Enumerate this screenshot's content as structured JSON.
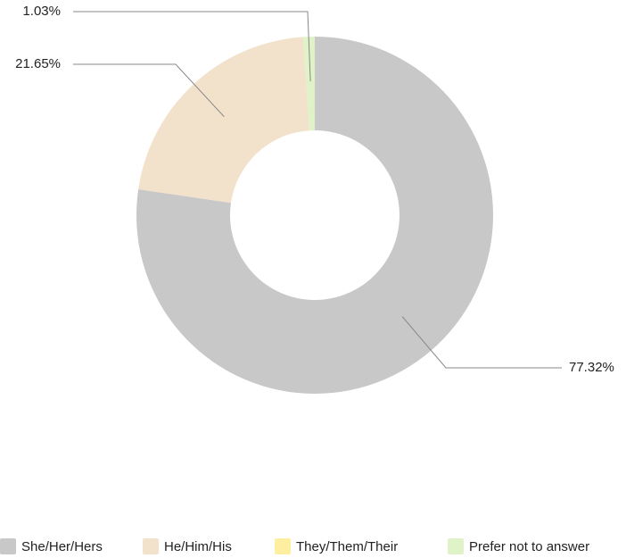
{
  "chart_data": {
    "type": "donut",
    "categories": [
      "She/Her/Hers",
      "He/Him/His",
      "They/Them/Their",
      "Prefer not to answer"
    ],
    "values": [
      77.32,
      21.65,
      0,
      1.03
    ],
    "value_labels": [
      "77.32%",
      "21.65%",
      null,
      "1.03%"
    ],
    "colors": [
      "#c8c8c8",
      "#f2e2cc",
      "#fdeea0",
      "#dff2c8"
    ],
    "legend": "bottom"
  }
}
